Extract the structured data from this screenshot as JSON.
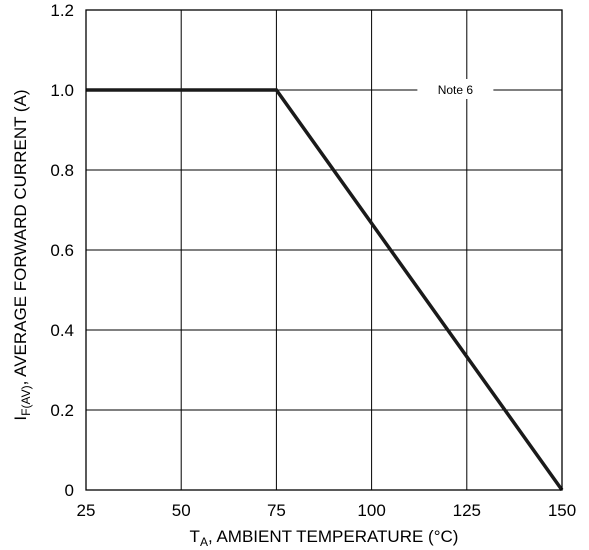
{
  "chart_data": {
    "type": "line",
    "x_ticks": [
      "25",
      "50",
      "75",
      "100",
      "125",
      "150"
    ],
    "y_ticks": [
      "0",
      "0.2",
      "0.4",
      "0.6",
      "0.8",
      "1.0",
      "1.2"
    ],
    "xlim": [
      25,
      150
    ],
    "ylim": [
      0,
      1.2
    ],
    "grid": true,
    "xlabel": {
      "main": "T",
      "sub": "A",
      "rest": ", AMBIENT TEMPERATURE (°C)"
    },
    "ylabel": {
      "main": "I",
      "sub": "F(AV)",
      "rest": ", AVERAGE FORWARD CURRENT (A)"
    },
    "series": [
      {
        "x": [
          25,
          75,
          150
        ],
        "y": [
          1.0,
          1.0,
          0
        ]
      }
    ],
    "annotation": {
      "text": "Note 6",
      "x": 122,
      "y": 1.0
    }
  }
}
